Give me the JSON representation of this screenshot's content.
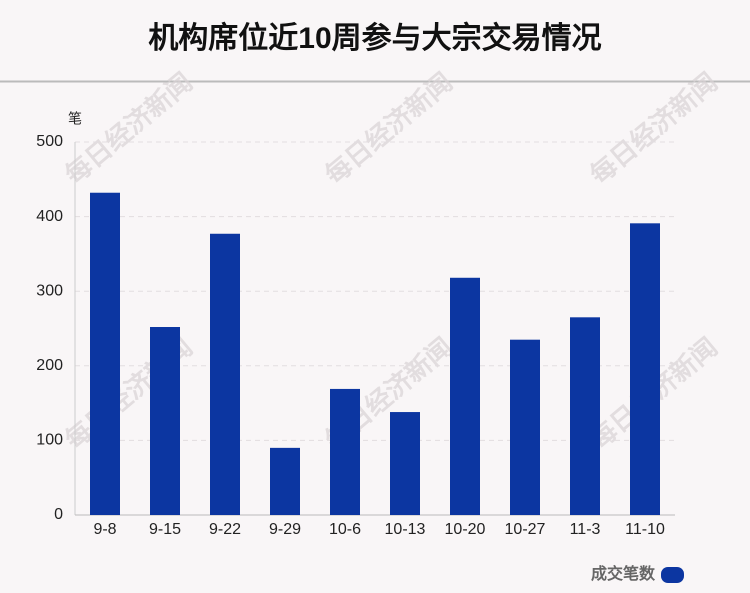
{
  "chart_data": {
    "type": "bar",
    "title": "机构席位近10周参与大宗交易情况",
    "y_label": "笔",
    "categories": [
      "9-8",
      "9-15",
      "9-22",
      "9-29",
      "10-6",
      "10-13",
      "10-20",
      "10-27",
      "11-3",
      "11-10"
    ],
    "series": [
      {
        "name": "成交笔数",
        "color": "#0c36a1",
        "values": [
          432,
          252,
          377,
          90,
          169,
          138,
          318,
          235,
          265,
          391
        ]
      }
    ],
    "ylim": [
      0,
      500
    ],
    "yticks": [
      0,
      100,
      200,
      300,
      400,
      500
    ],
    "grid": true,
    "legend": "bottom-right",
    "watermark": "每日经济新闻"
  }
}
